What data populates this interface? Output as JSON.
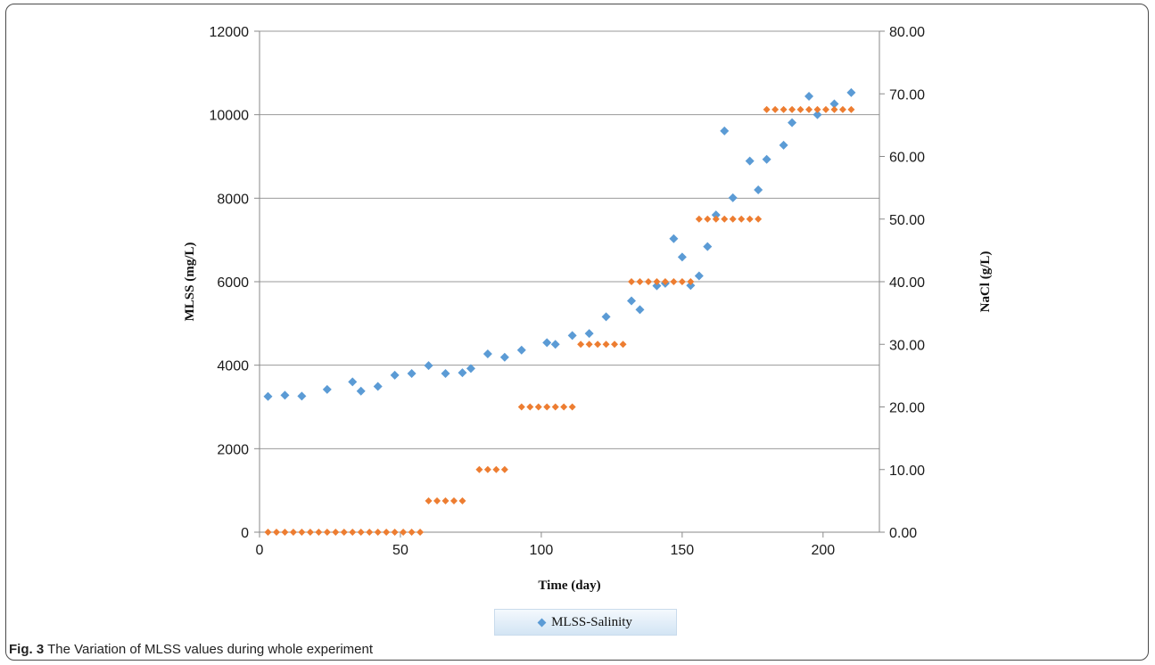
{
  "caption": {
    "fig_label": "Fig. 3",
    "text": "The Variation of MLSS values during whole experiment"
  },
  "legend": {
    "label": "MLSS-Salinity",
    "marker_color": "#5b9bd5"
  },
  "chart_data": {
    "type": "scatter",
    "xlabel": "Time (day)",
    "ylabel": "MLSS (mg/L)",
    "y2label": "NaCl (g/L)",
    "xlim": [
      0,
      220
    ],
    "ylim": [
      0,
      12000
    ],
    "y2lim": [
      0,
      80
    ],
    "xticks": [
      "0",
      "50",
      "100",
      "150",
      "200"
    ],
    "yticks": [
      "0",
      "2000",
      "4000",
      "6000",
      "8000",
      "10000",
      "12000"
    ],
    "y2ticks": [
      "0.00",
      "10.00",
      "20.00",
      "30.00",
      "40.00",
      "50.00",
      "60.00",
      "70.00",
      "80.00"
    ],
    "grid": "horizontal",
    "legend_position": "bottom",
    "series": [
      {
        "name": "MLSS-Salinity",
        "axis": "left",
        "color": "#5b9bd5",
        "x": [
          3,
          9,
          15,
          24,
          33,
          36,
          42,
          48,
          54,
          60,
          66,
          72,
          75,
          81,
          87,
          93,
          102,
          105,
          111,
          117,
          123,
          132,
          135,
          141,
          144,
          147,
          150,
          153,
          156,
          159,
          162,
          165,
          168,
          174,
          177,
          180,
          186,
          189,
          195,
          198,
          204,
          210
        ],
        "y": [
          3250,
          3280,
          3260,
          3420,
          3600,
          3380,
          3490,
          3760,
          3800,
          3990,
          3800,
          3820,
          3920,
          4270,
          4190,
          4360,
          4540,
          4500,
          4710,
          4760,
          5160,
          5540,
          5330,
          5900,
          5960,
          7030,
          6590,
          5910,
          6140,
          6840,
          7600,
          9610,
          8010,
          8890,
          8200,
          8930,
          9270,
          9810,
          10440,
          10000,
          10260,
          10530
        ]
      },
      {
        "name": "",
        "axis": "right",
        "color": "#ed7d31",
        "x": [
          3,
          6,
          9,
          12,
          15,
          18,
          21,
          24,
          27,
          30,
          33,
          36,
          39,
          42,
          45,
          48,
          51,
          54,
          57,
          60,
          63,
          66,
          69,
          72,
          78,
          81,
          84,
          87,
          93,
          96,
          99,
          102,
          105,
          108,
          111,
          114,
          117,
          120,
          123,
          126,
          129,
          132,
          135,
          138,
          141,
          144,
          147,
          150,
          153,
          156,
          159,
          162,
          165,
          168,
          171,
          174,
          177,
          180,
          183,
          186,
          189,
          192,
          195,
          198,
          201,
          204,
          207,
          210
        ],
        "y": [
          0,
          0,
          0,
          0,
          0,
          0,
          0,
          0,
          0,
          0,
          0,
          0,
          0,
          0,
          0,
          0,
          0,
          0,
          0,
          5,
          5,
          5,
          5,
          5,
          10,
          10,
          10,
          10,
          20,
          20,
          20,
          20,
          20,
          20,
          20,
          30,
          30,
          30,
          30,
          30,
          30,
          40,
          40,
          40,
          40,
          40,
          40,
          40,
          40,
          50,
          50,
          50,
          50,
          50,
          50,
          50,
          50,
          67.5,
          67.5,
          67.5,
          67.5,
          67.5,
          67.5,
          67.5,
          67.5,
          67.5,
          67.5,
          67.5
        ]
      }
    ]
  }
}
